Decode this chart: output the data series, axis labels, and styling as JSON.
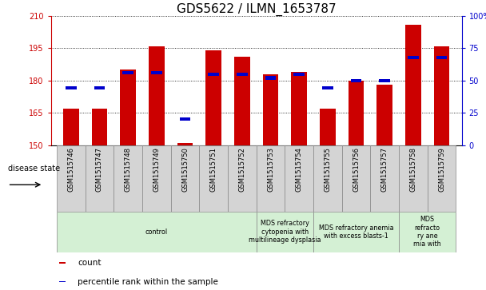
{
  "title": "GDS5622 / ILMN_1653787",
  "samples": [
    "GSM1515746",
    "GSM1515747",
    "GSM1515748",
    "GSM1515749",
    "GSM1515750",
    "GSM1515751",
    "GSM1515752",
    "GSM1515753",
    "GSM1515754",
    "GSM1515755",
    "GSM1515756",
    "GSM1515757",
    "GSM1515758",
    "GSM1515759"
  ],
  "counts": [
    167,
    167,
    185,
    196,
    151,
    194,
    191,
    183,
    184,
    167,
    180,
    178,
    206,
    196
  ],
  "percentile_ranks": [
    44,
    44,
    56,
    56,
    20,
    55,
    55,
    52,
    55,
    44,
    50,
    50,
    68,
    68
  ],
  "ylim_left": [
    150,
    210
  ],
  "ylim_right": [
    0,
    100
  ],
  "yticks_left": [
    150,
    165,
    180,
    195,
    210
  ],
  "yticks_right": [
    0,
    25,
    50,
    75,
    100
  ],
  "bar_color": "#cc0000",
  "square_color": "#0000cc",
  "background_color": "#ffffff",
  "disease_groups": [
    {
      "label": "control",
      "start": 0,
      "end": 7
    },
    {
      "label": "MDS refractory\ncytopenia with\nmultilineage dysplasia",
      "start": 7,
      "end": 9
    },
    {
      "label": "MDS refractory anemia\nwith excess blasts-1",
      "start": 9,
      "end": 12
    },
    {
      "label": "MDS\nrefracto\nry ane\nmia with",
      "start": 12,
      "end": 14
    }
  ],
  "disease_state_label": "disease state",
  "legend_items": [
    {
      "color": "#cc0000",
      "label": "count"
    },
    {
      "color": "#0000cc",
      "label": "percentile rank within the sample"
    }
  ],
  "title_fontsize": 11,
  "tick_fontsize": 7,
  "bar_width": 0.55,
  "sample_box_color": "#d4d4d4",
  "disease_box_color": "#d4f0d4",
  "n_samples": 14
}
